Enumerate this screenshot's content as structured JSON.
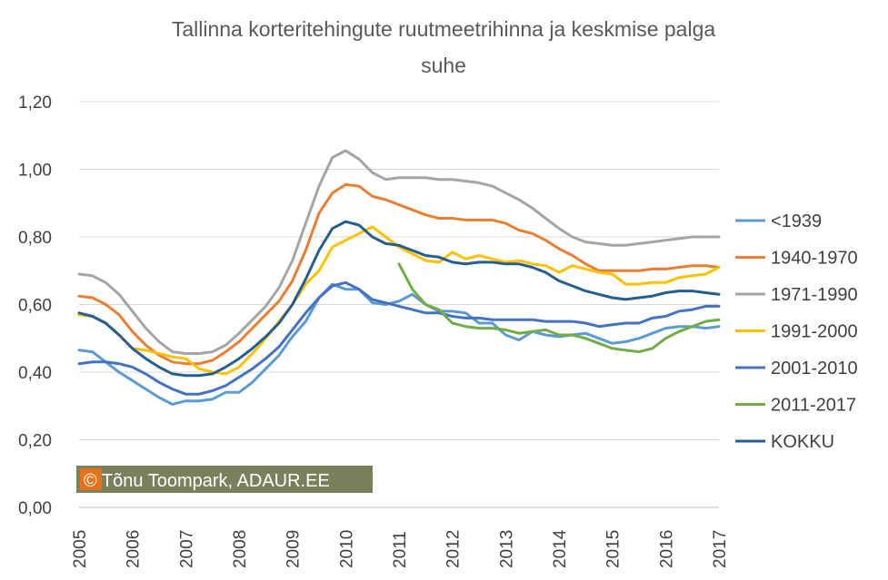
{
  "chart_data": {
    "type": "line",
    "title_lines": [
      "Tallinna korteritehingute ruutmeetrihinna ja keskmise palga",
      "suhe"
    ],
    "xlabel": "",
    "ylabel": "",
    "xlim": [
      2005,
      2017
    ],
    "ylim": [
      0,
      1.2
    ],
    "grid": true,
    "legend_position": "right",
    "x_ticks": [
      "2005",
      "2006",
      "2007",
      "2008",
      "2009",
      "2010",
      "2011",
      "2012",
      "2013",
      "2014",
      "2015",
      "2016",
      "2017"
    ],
    "y_ticks": [
      "0,00",
      "0,20",
      "0,40",
      "0,60",
      "0,80",
      "1,00",
      "1,20"
    ],
    "watermark": "© Tõnu Toompark, ADAUR.EE",
    "watermark_badge_color": "#e8711c",
    "series": [
      {
        "name": "<1939",
        "color": "#5b9bd5",
        "x": [
          2005,
          2005.25,
          2005.5,
          2005.75,
          2006,
          2006.25,
          2006.5,
          2006.75,
          2007,
          2007.25,
          2007.5,
          2007.75,
          2008,
          2008.25,
          2008.5,
          2008.75,
          2009,
          2009.25,
          2009.5,
          2009.75,
          2010,
          2010.25,
          2010.5,
          2010.75,
          2011,
          2011.25,
          2011.5,
          2011.75,
          2012,
          2012.25,
          2012.5,
          2012.75,
          2013,
          2013.25,
          2013.5,
          2013.75,
          2014,
          2014.25,
          2014.5,
          2014.75,
          2015,
          2015.25,
          2015.5,
          2015.75,
          2016,
          2016.25,
          2016.5,
          2016.75,
          2017
        ],
        "y": [
          0.465,
          0.46,
          0.43,
          0.4,
          0.375,
          0.35,
          0.325,
          0.305,
          0.315,
          0.315,
          0.32,
          0.34,
          0.34,
          0.37,
          0.41,
          0.45,
          0.505,
          0.55,
          0.62,
          0.66,
          0.645,
          0.645,
          0.605,
          0.6,
          0.61,
          0.63,
          0.6,
          0.58,
          0.58,
          0.575,
          0.545,
          0.545,
          0.51,
          0.495,
          0.52,
          0.51,
          0.505,
          0.51,
          0.515,
          0.5,
          0.485,
          0.49,
          0.5,
          0.515,
          0.53,
          0.535,
          0.535,
          0.53,
          0.535
        ]
      },
      {
        "name": "1940-1970",
        "color": "#ed7d31",
        "x": [
          2005,
          2005.25,
          2005.5,
          2005.75,
          2006,
          2006.25,
          2006.5,
          2006.75,
          2007,
          2007.25,
          2007.5,
          2007.75,
          2008,
          2008.25,
          2008.5,
          2008.75,
          2009,
          2009.25,
          2009.5,
          2009.75,
          2010,
          2010.25,
          2010.5,
          2010.75,
          2011,
          2011.25,
          2011.5,
          2011.75,
          2012,
          2012.25,
          2012.5,
          2012.75,
          2013,
          2013.25,
          2013.5,
          2013.75,
          2014,
          2014.25,
          2014.5,
          2014.75,
          2015,
          2015.25,
          2015.5,
          2015.75,
          2016,
          2016.25,
          2016.5,
          2016.75,
          2017
        ],
        "y": [
          0.625,
          0.62,
          0.6,
          0.57,
          0.52,
          0.48,
          0.45,
          0.43,
          0.425,
          0.425,
          0.435,
          0.46,
          0.49,
          0.53,
          0.57,
          0.61,
          0.67,
          0.76,
          0.87,
          0.93,
          0.955,
          0.95,
          0.92,
          0.91,
          0.895,
          0.88,
          0.865,
          0.855,
          0.855,
          0.85,
          0.85,
          0.85,
          0.84,
          0.82,
          0.81,
          0.79,
          0.765,
          0.745,
          0.72,
          0.7,
          0.7,
          0.7,
          0.7,
          0.705,
          0.705,
          0.71,
          0.715,
          0.715,
          0.71
        ]
      },
      {
        "name": "1971-1990",
        "color": "#a5a5a5",
        "x": [
          2005,
          2005.25,
          2005.5,
          2005.75,
          2006,
          2006.25,
          2006.5,
          2006.75,
          2007,
          2007.25,
          2007.5,
          2007.75,
          2008,
          2008.25,
          2008.5,
          2008.75,
          2009,
          2009.25,
          2009.5,
          2009.75,
          2010,
          2010.25,
          2010.5,
          2010.75,
          2011,
          2011.25,
          2011.5,
          2011.75,
          2012,
          2012.25,
          2012.5,
          2012.75,
          2013,
          2013.25,
          2013.5,
          2013.75,
          2014,
          2014.25,
          2014.5,
          2014.75,
          2015,
          2015.25,
          2015.5,
          2015.75,
          2016,
          2016.25,
          2016.5,
          2016.75,
          2017
        ],
        "y": [
          0.69,
          0.685,
          0.665,
          0.63,
          0.58,
          0.53,
          0.49,
          0.46,
          0.455,
          0.455,
          0.46,
          0.48,
          0.515,
          0.555,
          0.595,
          0.65,
          0.73,
          0.84,
          0.95,
          1.035,
          1.055,
          1.03,
          0.99,
          0.97,
          0.975,
          0.975,
          0.975,
          0.97,
          0.97,
          0.965,
          0.96,
          0.95,
          0.93,
          0.91,
          0.885,
          0.855,
          0.825,
          0.8,
          0.785,
          0.78,
          0.775,
          0.775,
          0.78,
          0.785,
          0.79,
          0.795,
          0.8,
          0.8,
          0.8
        ]
      },
      {
        "name": "1991-2000",
        "color": "#ffc000",
        "x": [
          2005,
          2005.25,
          2005.5,
          2005.75,
          2006,
          2006.25,
          2006.5,
          2006.75,
          2007,
          2007.25,
          2007.5,
          2007.75,
          2008,
          2008.25,
          2008.5,
          2008.75,
          2009,
          2009.25,
          2009.5,
          2009.75,
          2010,
          2010.25,
          2010.5,
          2010.75,
          2011,
          2011.25,
          2011.5,
          2011.75,
          2012,
          2012.25,
          2012.5,
          2012.75,
          2013,
          2013.25,
          2013.5,
          2013.75,
          2014,
          2014.25,
          2014.5,
          2014.75,
          2015,
          2015.25,
          2015.5,
          2015.75,
          2016,
          2016.25,
          2016.5,
          2016.75,
          2017
        ],
        "y": [
          0.57,
          0.565,
          0.545,
          0.51,
          0.47,
          0.465,
          0.455,
          0.445,
          0.44,
          0.41,
          0.4,
          0.395,
          0.415,
          0.455,
          0.5,
          0.55,
          0.6,
          0.66,
          0.7,
          0.77,
          0.79,
          0.81,
          0.83,
          0.8,
          0.77,
          0.75,
          0.73,
          0.725,
          0.755,
          0.735,
          0.745,
          0.735,
          0.725,
          0.73,
          0.72,
          0.715,
          0.695,
          0.715,
          0.705,
          0.695,
          0.69,
          0.66,
          0.66,
          0.665,
          0.665,
          0.68,
          0.685,
          0.69,
          0.71
        ]
      },
      {
        "name": "2001-2010",
        "color": "#4472c4",
        "x": [
          2005,
          2005.25,
          2005.5,
          2005.75,
          2006,
          2006.25,
          2006.5,
          2006.75,
          2007,
          2007.25,
          2007.5,
          2007.75,
          2008,
          2008.25,
          2008.5,
          2008.75,
          2009,
          2009.25,
          2009.5,
          2009.75,
          2010,
          2010.25,
          2010.5,
          2010.75,
          2011,
          2011.25,
          2011.5,
          2011.75,
          2012,
          2012.25,
          2012.5,
          2012.75,
          2013,
          2013.25,
          2013.5,
          2013.75,
          2014,
          2014.25,
          2014.5,
          2014.75,
          2015,
          2015.25,
          2015.5,
          2015.75,
          2016,
          2016.25,
          2016.5,
          2016.75,
          2017
        ],
        "y": [
          0.425,
          0.43,
          0.43,
          0.425,
          0.415,
          0.395,
          0.37,
          0.35,
          0.335,
          0.335,
          0.345,
          0.36,
          0.385,
          0.41,
          0.44,
          0.475,
          0.525,
          0.575,
          0.62,
          0.655,
          0.665,
          0.645,
          0.615,
          0.605,
          0.595,
          0.585,
          0.575,
          0.575,
          0.565,
          0.56,
          0.56,
          0.555,
          0.555,
          0.555,
          0.555,
          0.55,
          0.55,
          0.55,
          0.545,
          0.535,
          0.54,
          0.545,
          0.545,
          0.56,
          0.565,
          0.58,
          0.585,
          0.595,
          0.595
        ]
      },
      {
        "name": "2011-2017",
        "color": "#70ad47",
        "x": [
          2011,
          2011.25,
          2011.5,
          2011.75,
          2012,
          2012.25,
          2012.5,
          2012.75,
          2013,
          2013.25,
          2013.5,
          2013.75,
          2014,
          2014.25,
          2014.5,
          2014.75,
          2015,
          2015.25,
          2015.5,
          2015.75,
          2016,
          2016.25,
          2016.5,
          2016.75,
          2017
        ],
        "y": [
          0.72,
          0.645,
          0.6,
          0.585,
          0.545,
          0.535,
          0.53,
          0.53,
          0.525,
          0.515,
          0.52,
          0.525,
          0.51,
          0.51,
          0.5,
          0.485,
          0.47,
          0.465,
          0.46,
          0.47,
          0.5,
          0.52,
          0.535,
          0.55,
          0.555
        ]
      },
      {
        "name": "KOKKU",
        "color": "#255e91",
        "x": [
          2005,
          2005.25,
          2005.5,
          2005.75,
          2006,
          2006.25,
          2006.5,
          2006.75,
          2007,
          2007.25,
          2007.5,
          2007.75,
          2008,
          2008.25,
          2008.5,
          2008.75,
          2009,
          2009.25,
          2009.5,
          2009.75,
          2010,
          2010.25,
          2010.5,
          2010.75,
          2011,
          2011.25,
          2011.5,
          2011.75,
          2012,
          2012.25,
          2012.5,
          2012.75,
          2013,
          2013.25,
          2013.5,
          2013.75,
          2014,
          2014.25,
          2014.5,
          2014.75,
          2015,
          2015.25,
          2015.5,
          2015.75,
          2016,
          2016.25,
          2016.5,
          2016.75,
          2017
        ],
        "y": [
          0.575,
          0.565,
          0.545,
          0.51,
          0.47,
          0.44,
          0.415,
          0.395,
          0.39,
          0.39,
          0.395,
          0.415,
          0.44,
          0.47,
          0.505,
          0.545,
          0.6,
          0.675,
          0.76,
          0.825,
          0.845,
          0.835,
          0.8,
          0.78,
          0.775,
          0.76,
          0.745,
          0.74,
          0.725,
          0.72,
          0.725,
          0.725,
          0.72,
          0.72,
          0.71,
          0.695,
          0.67,
          0.655,
          0.64,
          0.63,
          0.62,
          0.615,
          0.62,
          0.625,
          0.635,
          0.64,
          0.64,
          0.635,
          0.63
        ]
      }
    ]
  }
}
